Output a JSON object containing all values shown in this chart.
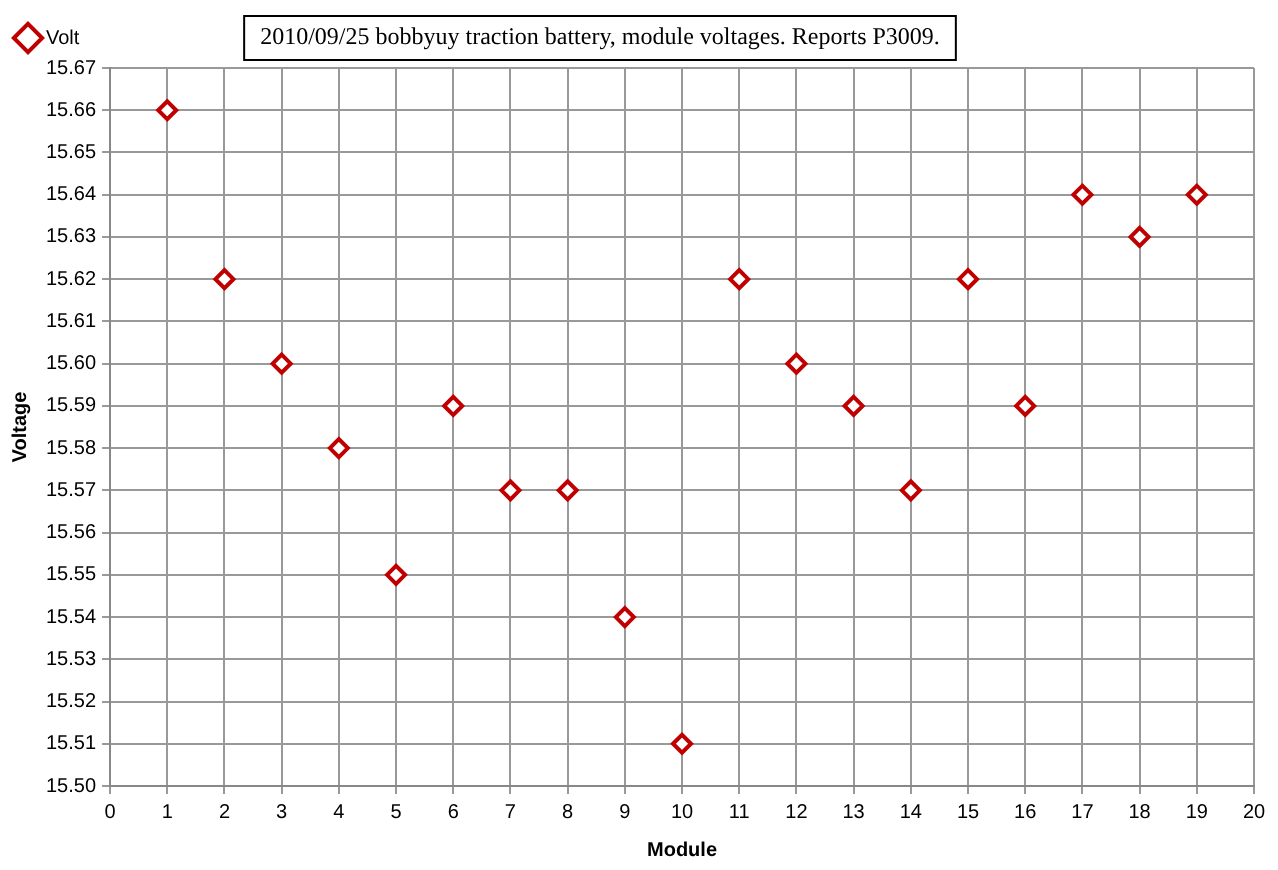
{
  "chart_data": {
    "type": "scatter",
    "title": "2010/09/25 bobbyuy traction battery, module voltages. Reports P3009.",
    "xlabel": "Module",
    "ylabel": "Voltage",
    "x": [
      1,
      2,
      3,
      4,
      5,
      6,
      7,
      8,
      9,
      10,
      11,
      12,
      13,
      14,
      15,
      16,
      17,
      18,
      19
    ],
    "series": [
      {
        "name": "Volt",
        "color": "#c00000",
        "values": [
          15.66,
          15.62,
          15.6,
          15.58,
          15.55,
          15.59,
          15.57,
          15.57,
          15.54,
          15.51,
          15.62,
          15.6,
          15.59,
          15.57,
          15.62,
          15.59,
          15.64,
          15.63,
          15.64
        ]
      }
    ],
    "xlim": [
      0,
      20
    ],
    "xticks": [
      0,
      1,
      2,
      3,
      4,
      5,
      6,
      7,
      8,
      9,
      10,
      11,
      12,
      13,
      14,
      15,
      16,
      17,
      18,
      19,
      20
    ],
    "ylim": [
      15.5,
      15.67
    ],
    "yticks": [
      {
        "value": 15.5,
        "label": "15.50"
      },
      15.51,
      15.52,
      15.53,
      15.54,
      15.55,
      15.56,
      15.57,
      15.58,
      15.59,
      {
        "value": 15.6,
        "label": "15.60"
      },
      15.61,
      15.62,
      15.63,
      15.64,
      15.65,
      15.66,
      15.67
    ],
    "grid": true,
    "legend": "top left",
    "marker": "diamond"
  }
}
